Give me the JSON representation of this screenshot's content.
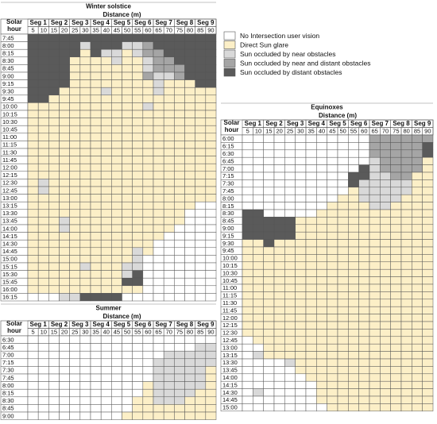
{
  "legend": [
    {
      "label": "No Intersection user vision",
      "color": "#ffffff"
    },
    {
      "label": "Direct Sun glare",
      "color": "#fcefc7"
    },
    {
      "label": "Sun occluded by near obstacles",
      "color": "#d9d9d9"
    },
    {
      "label": "Sun occluded by near and distant obstacles",
      "color": "#a5a5a5"
    },
    {
      "label": "Sun occluded by distant obstacles",
      "color": "#5a5a5a"
    }
  ],
  "tables": [
    {
      "title": "Winter solstice",
      "distance_label": "Distance (m)",
      "hour_label": [
        "Solar",
        "hour"
      ],
      "segments": [
        "Seg 1",
        "Seg 2",
        "Seg 3",
        "Seg 4",
        "Seg 5",
        "Seg 6",
        "Seg 7",
        "Seg 8",
        "Seg 9"
      ],
      "distances": [
        "5",
        "10",
        "15",
        "20",
        "25",
        "30",
        "35",
        "40",
        "45",
        "50",
        "55",
        "60",
        "65",
        "70",
        "75",
        "80",
        "85",
        "90"
      ],
      "rows": [
        {
          "time": "7:45",
          "cells": "444444444444444444"
        },
        {
          "time": "8:00",
          "cells": "444442444223444444"
        },
        {
          "time": "8:15",
          "cells": "444441422123344444"
        },
        {
          "time": "8:30",
          "cells": "444411112112334444"
        },
        {
          "time": "8:45",
          "cells": "444411111112333444"
        },
        {
          "time": "9:00",
          "cells": "444411111113223444"
        },
        {
          "time": "9:15",
          "cells": "444411111111211144"
        },
        {
          "time": "9:30",
          "cells": "444111121111211111"
        },
        {
          "time": "9:45",
          "cells": "441111111111111111"
        },
        {
          "time": "10:00",
          "cells": "111111111112111111"
        },
        {
          "time": "10:15",
          "cells": "111111111111111111"
        },
        {
          "time": "10:30",
          "cells": "111111111111111111"
        },
        {
          "time": "10:45",
          "cells": "111111111111111111"
        },
        {
          "time": "11:00",
          "cells": "111111111111111111"
        },
        {
          "time": "11:15",
          "cells": "111111111111111111"
        },
        {
          "time": "11:30",
          "cells": "111111111111111111"
        },
        {
          "time": "11:45",
          "cells": "111111111111111111"
        },
        {
          "time": "12:00",
          "cells": "111111111111111111"
        },
        {
          "time": "12:15",
          "cells": "111111111111111111"
        },
        {
          "time": "12:30",
          "cells": "121111111111111111"
        },
        {
          "time": "12:45",
          "cells": "121111111111111111"
        },
        {
          "time": "13:00",
          "cells": "111111111111111111"
        },
        {
          "time": "13:15",
          "cells": "111111111111111100"
        },
        {
          "time": "13:30",
          "cells": "111111111111111000"
        },
        {
          "time": "13:45",
          "cells": "111211111111111000"
        },
        {
          "time": "14:00",
          "cells": "111211111111110000"
        },
        {
          "time": "14:15",
          "cells": "111111111111100000"
        },
        {
          "time": "14:30",
          "cells": "111111111111000000"
        },
        {
          "time": "14:45",
          "cells": "111111111121000000"
        },
        {
          "time": "15:00",
          "cells": "111111111120000000"
        },
        {
          "time": "15:15",
          "cells": "111112111220000000"
        },
        {
          "time": "15:30",
          "cells": "111111111240000000"
        },
        {
          "time": "15:45",
          "cells": "111111111440000000"
        },
        {
          "time": "16:00",
          "cells": "111111111110000000"
        },
        {
          "time": "16:15",
          "cells": "000224444000000000"
        }
      ]
    },
    {
      "title": "Summer",
      "distance_label": "Distance (m)",
      "hour_label": [
        "Solar",
        "hour"
      ],
      "segments": [
        "Seg 1",
        "Seg 2",
        "Seg 3",
        "Seg 4",
        "Seg 5",
        "Seg 6",
        "Seg 7",
        "Seg 8",
        "Seg 9"
      ],
      "distances": [
        "5",
        "10",
        "15",
        "20",
        "25",
        "30",
        "35",
        "40",
        "45",
        "50",
        "55",
        "60",
        "65",
        "70",
        "75",
        "80",
        "85",
        "90"
      ],
      "rows": [
        {
          "time": "6:30",
          "cells": "000000000000000000"
        },
        {
          "time": "6:45",
          "cells": "000000000000000022"
        },
        {
          "time": "7:00",
          "cells": "000000000000022222"
        },
        {
          "time": "7:15",
          "cells": "000000000000222222"
        },
        {
          "time": "7:30",
          "cells": "000000000000222221"
        },
        {
          "time": "7:45",
          "cells": "000000000000222221"
        },
        {
          "time": "8:00",
          "cells": "000000000001222221"
        },
        {
          "time": "8:15",
          "cells": "000000000001222211"
        },
        {
          "time": "8:30",
          "cells": "000000000011222111"
        },
        {
          "time": "8:45",
          "cells": "000000000011111111"
        },
        {
          "time": "9:00",
          "cells": "000000000111111111"
        }
      ]
    },
    {
      "title": "Equinoxes",
      "distance_label": "Distance (m)",
      "hour_label": [
        "Solar",
        "hour"
      ],
      "segments": [
        "Seg 1",
        "Seg 2",
        "Seg 3",
        "Seg 4",
        "Seg 5",
        "Seg 6",
        "Seg 7",
        "Seg 8",
        "Seg 9"
      ],
      "distances": [
        "5",
        "10",
        "15",
        "20",
        "25",
        "30",
        "35",
        "40",
        "45",
        "50",
        "55",
        "60",
        "65",
        "70",
        "75",
        "80",
        "85",
        "90"
      ],
      "rows": [
        {
          "time": "6:00",
          "cells": "000000000000333333"
        },
        {
          "time": "6:15",
          "cells": "000000000000333334"
        },
        {
          "time": "6:30",
          "cells": "000000000000333334"
        },
        {
          "time": "6:45",
          "cells": "000000000000233331"
        },
        {
          "time": "7:00",
          "cells": "000000000004233331"
        },
        {
          "time": "7:15",
          "cells": "000000000044223311"
        },
        {
          "time": "7:30",
          "cells": "000000000042222211"
        },
        {
          "time": "7:45",
          "cells": "000000000012222211"
        },
        {
          "time": "8:00",
          "cells": "000000000112222111"
        },
        {
          "time": "8:15",
          "cells": "000000001111221111"
        },
        {
          "time": "8:30",
          "cells": "440000011111111111"
        },
        {
          "time": "8:45",
          "cells": "444441111111111111"
        },
        {
          "time": "9:00",
          "cells": "444441111111111111"
        },
        {
          "time": "9:15",
          "cells": "444441111111111111"
        },
        {
          "time": "9:30",
          "cells": "114111111111111111"
        },
        {
          "time": "9:45",
          "cells": "111111111111111111"
        },
        {
          "time": "10:00",
          "cells": "111111111111111111"
        },
        {
          "time": "10:15",
          "cells": "111111111111111111"
        },
        {
          "time": "10:30",
          "cells": "111111111111111111"
        },
        {
          "time": "10:45",
          "cells": "111111111111111111"
        },
        {
          "time": "11:00",
          "cells": "111111111111111111"
        },
        {
          "time": "11:15",
          "cells": "111111111111111111"
        },
        {
          "time": "11:30",
          "cells": "111111111111111111"
        },
        {
          "time": "11:45",
          "cells": "111111111111111111"
        },
        {
          "time": "12:00",
          "cells": "111111111111111111"
        },
        {
          "time": "12:15",
          "cells": "111111111111111111"
        },
        {
          "time": "12:30",
          "cells": "111111111111111111"
        },
        {
          "time": "12:45",
          "cells": "011111111111111111"
        },
        {
          "time": "13:00",
          "cells": "001111111111111111"
        },
        {
          "time": "13:15",
          "cells": "021111111111111111"
        },
        {
          "time": "13:30",
          "cells": "000021111111111111"
        },
        {
          "time": "13:45",
          "cells": "000001111111111111"
        },
        {
          "time": "14:00",
          "cells": "000000111111111111"
        },
        {
          "time": "14:15",
          "cells": "000000011111111111"
        },
        {
          "time": "14:30",
          "cells": "020000011111111111"
        },
        {
          "time": "14:45",
          "cells": "000000011111111111"
        },
        {
          "time": "15:00",
          "cells": "000000001111111111"
        }
      ]
    }
  ]
}
